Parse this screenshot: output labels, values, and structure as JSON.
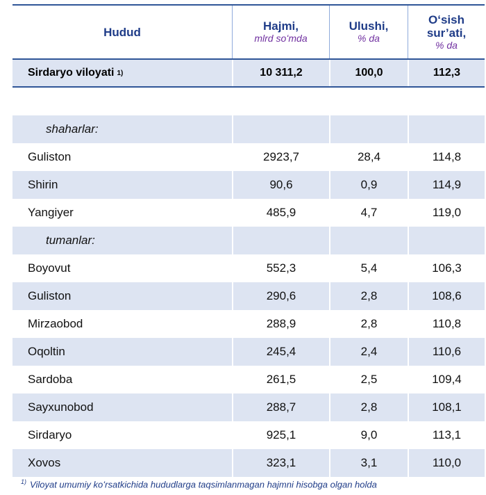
{
  "header": {
    "col1": "Hudud",
    "col2": "Hajmi,",
    "col2_unit": "mlrd soʻmda",
    "col3": "Ulushi,",
    "col3_unit": "% da",
    "col4a": "Oʻsish",
    "col4b": "sur’ati,",
    "col4_unit": "% da"
  },
  "total": {
    "name": "Sirdaryo viloyati",
    "mark": "1)",
    "volume": "10 311,2",
    "share": "100,0",
    "growth": "112,3"
  },
  "section_cities": "shaharlar:",
  "cities": [
    {
      "name": "Guliston",
      "volume": "2923,7",
      "share": "28,4",
      "growth": "114,8"
    },
    {
      "name": "Shirin",
      "volume": "90,6",
      "share": "0,9",
      "growth": "114,9"
    },
    {
      "name": "Yangiyer",
      "volume": "485,9",
      "share": "4,7",
      "growth": "119,0"
    }
  ],
  "section_districts": "tumanlar:",
  "districts": [
    {
      "name": "Boyovut",
      "volume": "552,3",
      "share": "5,4",
      "growth": "106,3"
    },
    {
      "name": "Guliston",
      "volume": "290,6",
      "share": "2,8",
      "growth": "108,6"
    },
    {
      "name": "Mirzaobod",
      "volume": "288,9",
      "share": "2,8",
      "growth": "110,8"
    },
    {
      "name": "Oqoltin",
      "volume": "245,4",
      "share": "2,4",
      "growth": "110,6"
    },
    {
      "name": "Sardoba",
      "volume": "261,5",
      "share": "2,5",
      "growth": "109,4"
    },
    {
      "name": "Sayxunobod",
      "volume": "288,7",
      "share": "2,8",
      "growth": "108,1"
    },
    {
      "name": "Sirdaryo",
      "volume": "925,1",
      "share": "9,0",
      "growth": "113,1"
    },
    {
      "name": "Xovos",
      "volume": "323,1",
      "share": "3,1",
      "growth": "110,0"
    }
  ],
  "footnote_mark": "1)",
  "footnote": "Viloyat umumiy koʻrsatkichida hududlarga taqsimlanmagan hajmni hisobga olgan holda"
}
